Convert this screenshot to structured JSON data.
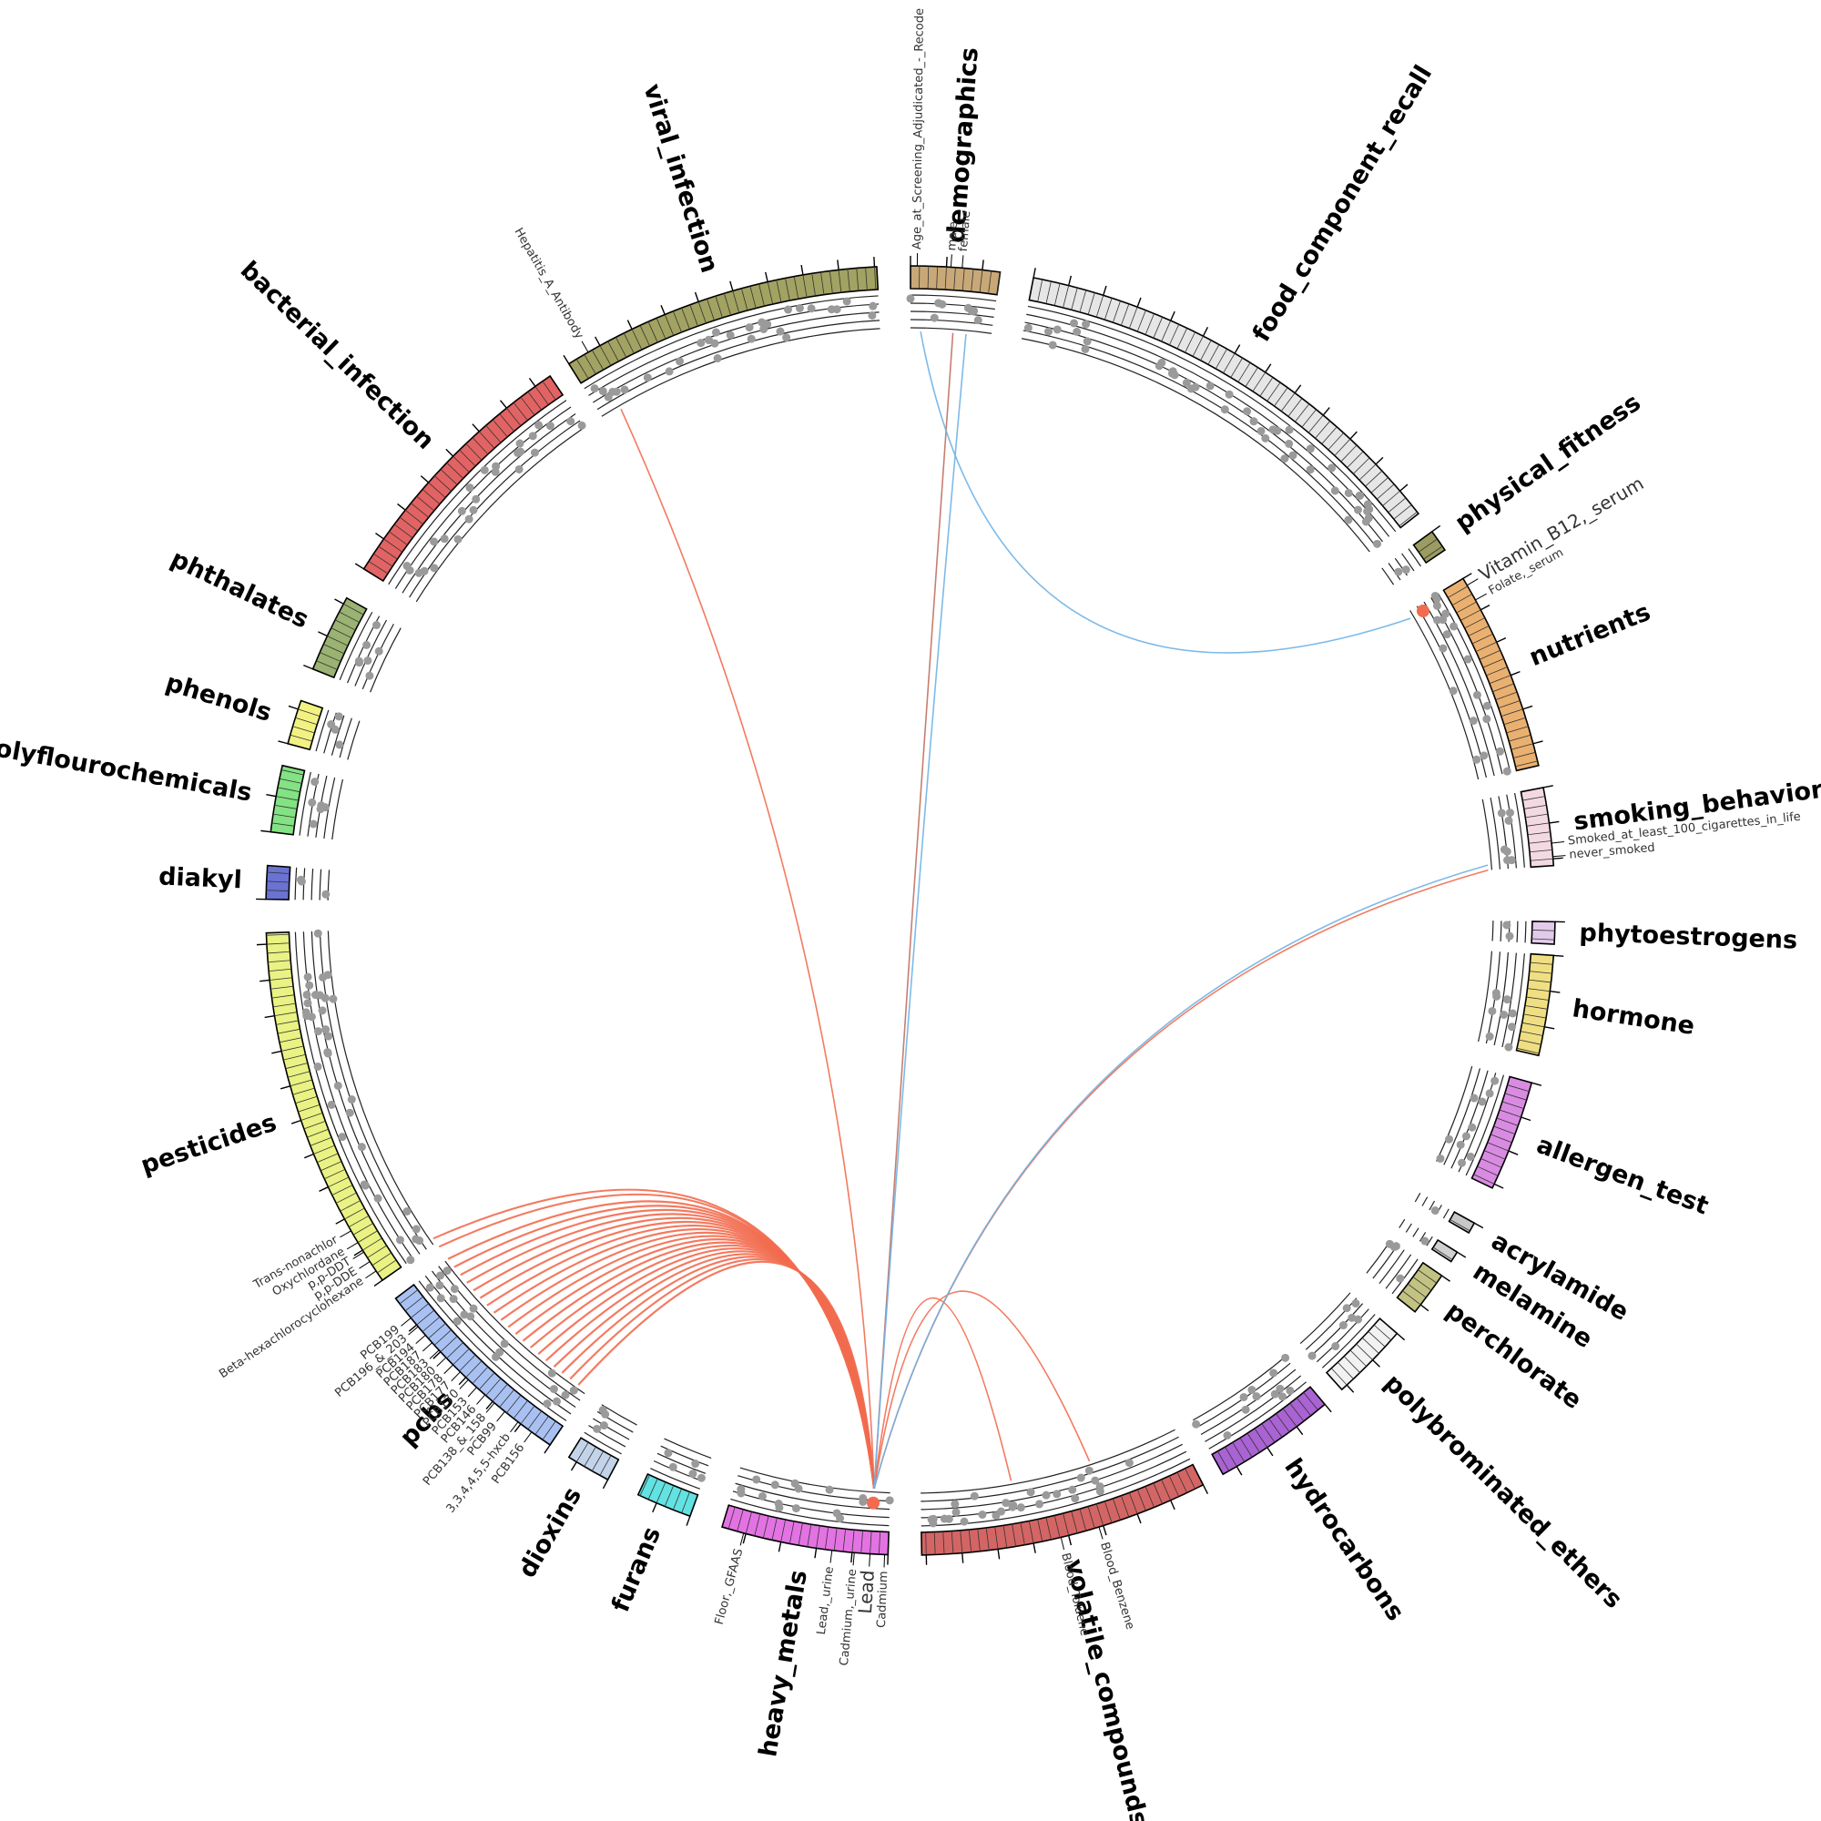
{
  "groups": [
    {
      "name": "demographics",
      "color": "#c9a877",
      "features": [
        "Age_at_Screening_Adjudicated_-_Recode",
        "male",
        "female"
      ]
    },
    {
      "name": "food_component_recall",
      "color": "#e6e6e6",
      "features": []
    },
    {
      "name": "physical_fitness",
      "color": "#9c9c62",
      "features": []
    },
    {
      "name": "nutrients",
      "color": "#e9b070",
      "features": [
        "Vitamin_B12,_serum",
        "Folate,_serum"
      ]
    },
    {
      "name": "smoking_behavior",
      "color": "#f3dae2",
      "features": [
        "Smoked_at_least_100_cigarettes_in_life",
        "never_smoked"
      ]
    },
    {
      "name": "phytoestrogens",
      "color": "#e2cbea",
      "features": []
    },
    {
      "name": "hormone",
      "color": "#f0df82",
      "features": []
    },
    {
      "name": "allergen_test",
      "color": "#d98be2",
      "features": []
    },
    {
      "name": "acrylamide",
      "color": "#c8c8c8",
      "features": []
    },
    {
      "name": "melamine",
      "color": "#d0d0d0",
      "features": []
    },
    {
      "name": "perchlorate",
      "color": "#c2c283",
      "features": []
    },
    {
      "name": "polybrominated_ethers",
      "color": "#f2f2f2",
      "features": []
    },
    {
      "name": "hydrocarbons",
      "color": "#a963d2",
      "features": []
    },
    {
      "name": "volatile_compounds",
      "color": "#d46565",
      "features": [
        "Blood_Benzene",
        "Blood_Toluene"
      ]
    },
    {
      "name": "heavy_metals",
      "color": "#e373e3",
      "features": [
        "Cadmium",
        "Lead",
        "Cadmium,_urine",
        "Lead,_urine",
        "Floor,_GFAAS"
      ]
    },
    {
      "name": "furans",
      "color": "#63e2e2",
      "features": []
    },
    {
      "name": "dioxins",
      "color": "#c3d3ea",
      "features": []
    },
    {
      "name": "pcbs",
      "color": "#a9c1f2",
      "features": [
        "PCB156",
        "3,3,4,4,5,5-hxcb",
        "PCB99",
        "PCB138_&_158",
        "PCB146",
        "PCB153",
        "PCB170",
        "PCB177",
        "PCB178",
        "PCB180",
        "PCB183",
        "PCB187",
        "PCB194",
        "PCB196_&_203",
        "PCB199"
      ]
    },
    {
      "name": "pesticides",
      "color": "#e9f283",
      "features": [
        "Beta-hexachlorocyclohexane",
        "p,p-DDE",
        "p,p-DDT",
        "Oxychlordane",
        "Trans-nonachlor"
      ]
    },
    {
      "name": "diakyl",
      "color": "#6a72d2",
      "features": []
    },
    {
      "name": "polyflourochemicals",
      "color": "#83e283",
      "features": []
    },
    {
      "name": "phenols",
      "color": "#f2f283",
      "features": []
    },
    {
      "name": "phthalates",
      "color": "#9ab272",
      "features": []
    },
    {
      "name": "bacterial_infection",
      "color": "#e26363",
      "features": []
    },
    {
      "name": "viral_infection",
      "color": "#a2a262",
      "features": [
        "Hepatitis_A_Antibody"
      ]
    }
  ]
}
